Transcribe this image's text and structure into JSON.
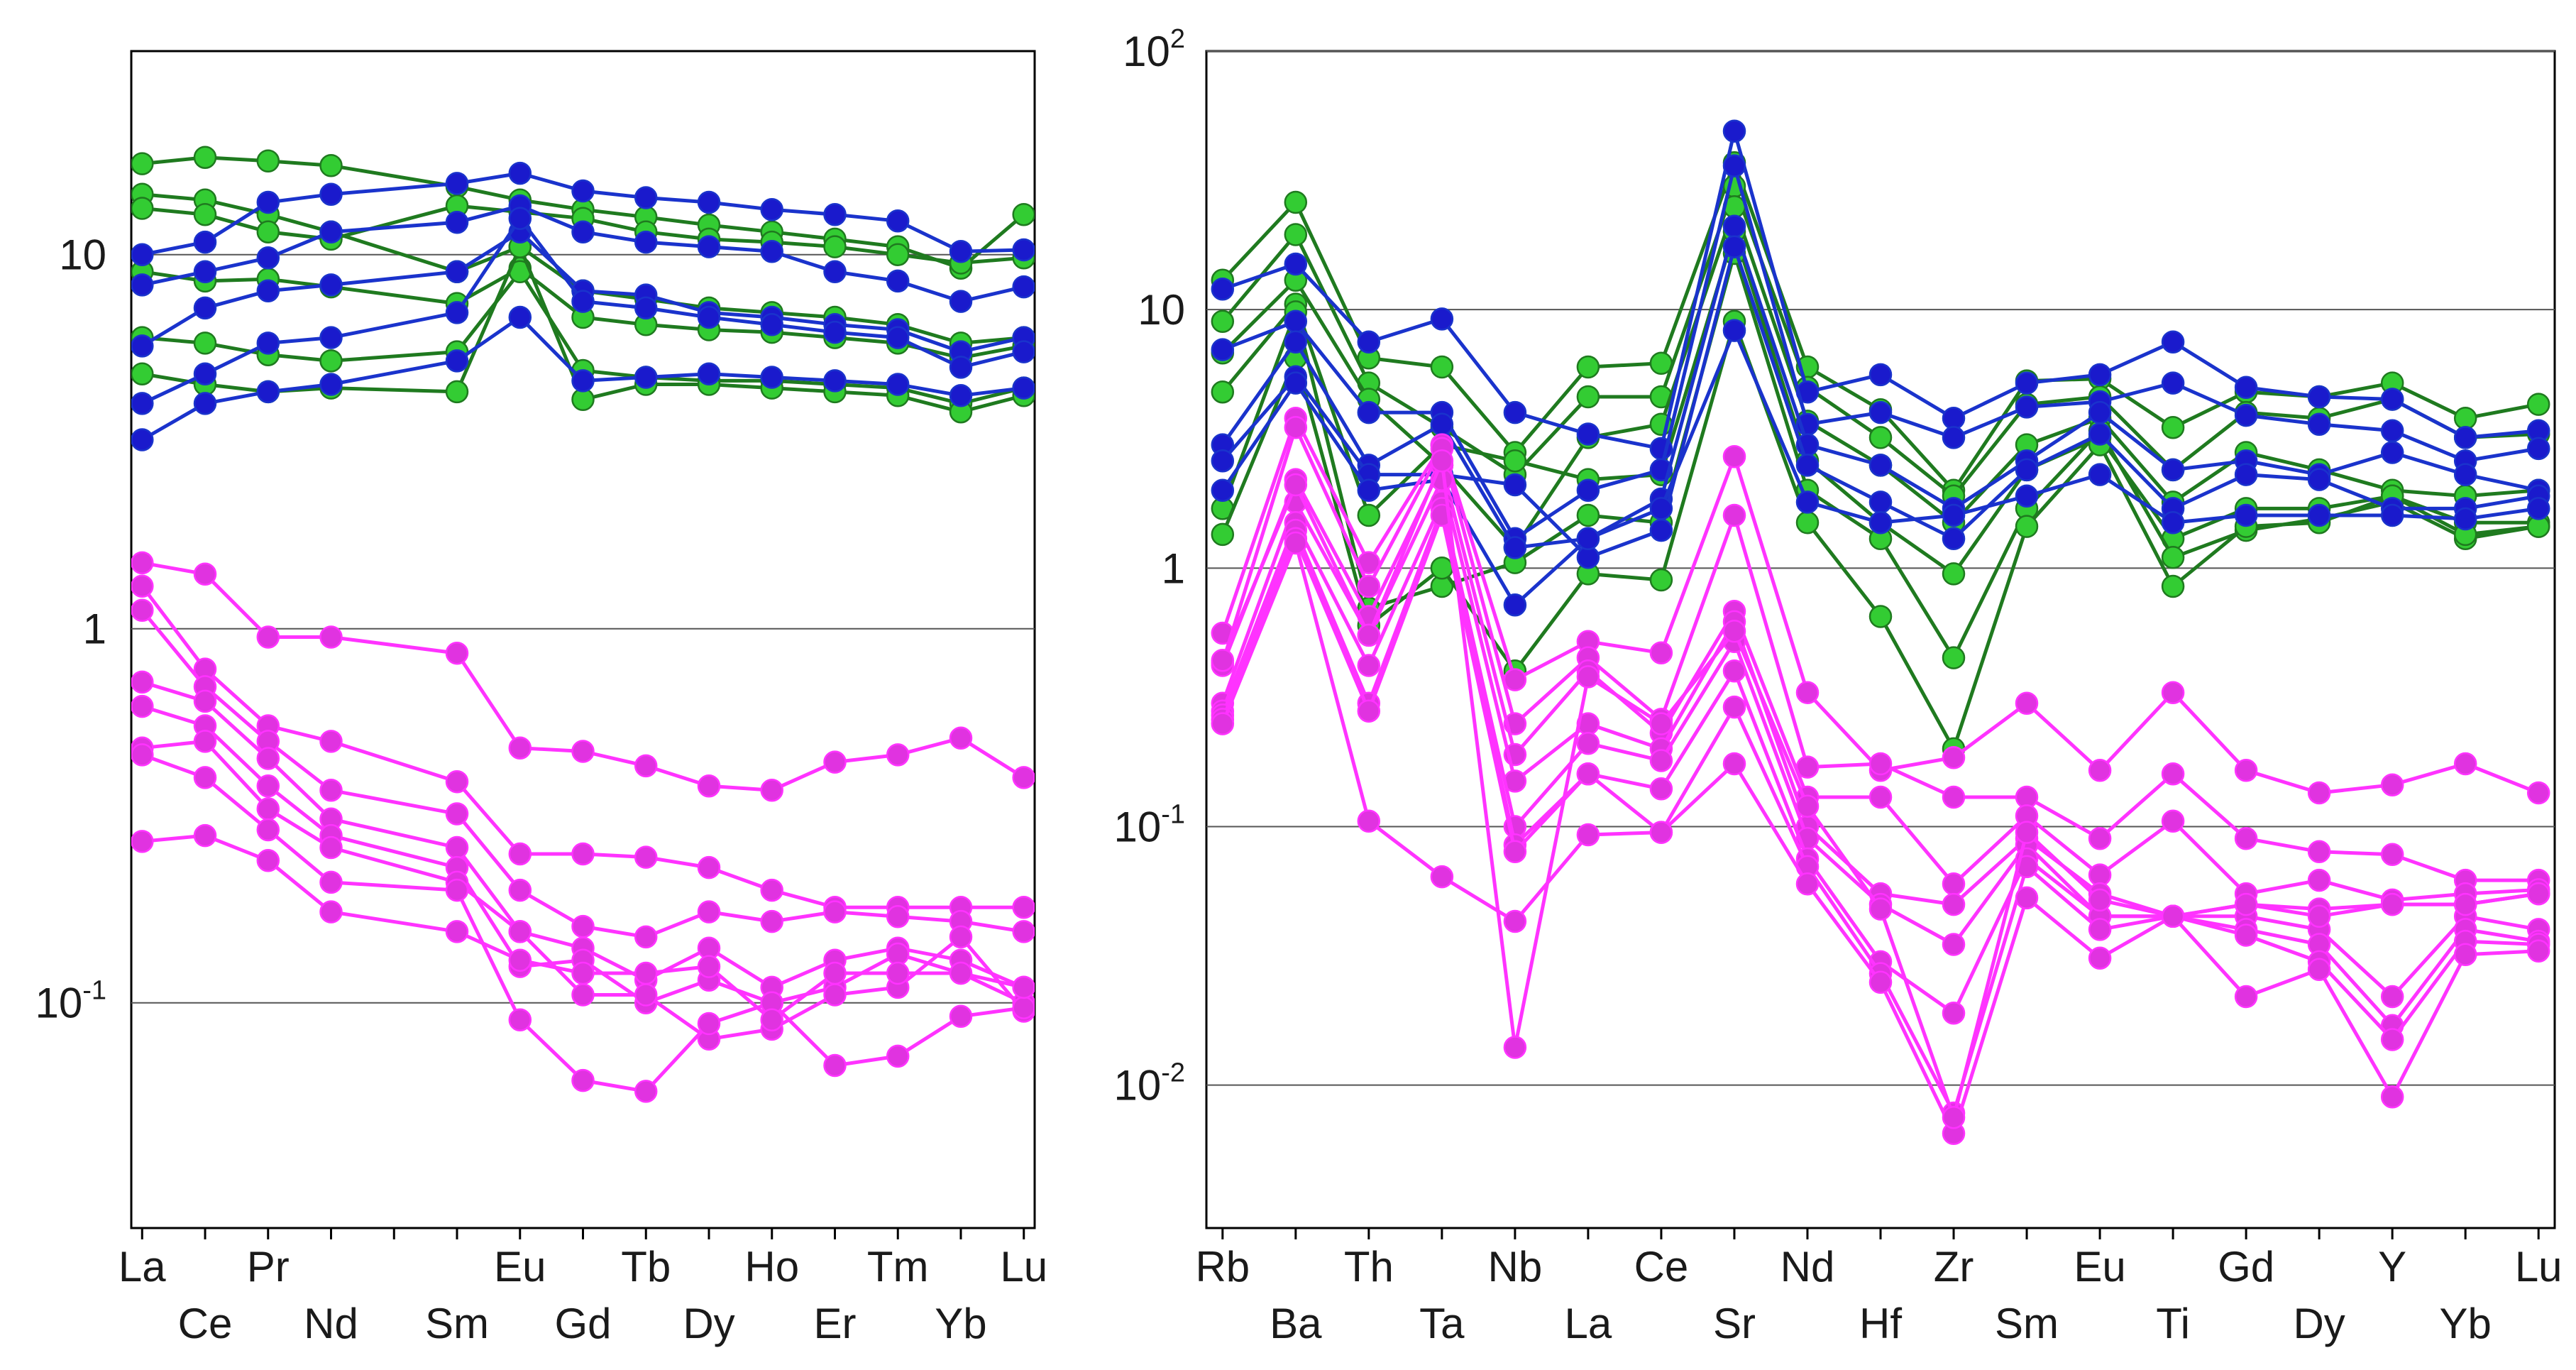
{
  "chart_data": [
    {
      "type": "line",
      "title": "",
      "xlabel": "",
      "ylabel": "",
      "yscale": "log",
      "ylim": [
        0.025,
        35
      ],
      "grid": "horizontal",
      "categories": [
        "La",
        "Ce",
        "Pr",
        "Nd",
        "",
        "Sm",
        "Eu",
        "Gd",
        "Tb",
        "Dy",
        "Ho",
        "Er",
        "Tm",
        "Yb",
        "Lu"
      ],
      "tick_labels_row1": [
        "La",
        "Pr",
        "Eu",
        "Tb",
        "Ho",
        "Tm",
        "Lu"
      ],
      "tick_labels_row2": [
        "Ce",
        "Nd",
        "Sm",
        "Gd",
        "Dy",
        "Er",
        "Yb"
      ],
      "y_ticks": [
        {
          "value": 0.1,
          "base": "10",
          "exp": "-1"
        },
        {
          "value": 1,
          "base": "1",
          "exp": ""
        },
        {
          "value": 10,
          "base": "10",
          "exp": ""
        }
      ],
      "groups": [
        {
          "name": "green",
          "line_color": "#1f7a1f",
          "marker_color": "#33cc33"
        },
        {
          "name": "blue",
          "line_color": "#1a33cc",
          "marker_color": "#1a1acc"
        },
        {
          "name": "magenta",
          "line_color": "#ff33ff",
          "marker_color": "#e033e0"
        }
      ],
      "series": [
        {
          "group": "green",
          "values": [
            17.5,
            18.2,
            17.8,
            17.3,
            null,
            15.2,
            14.0,
            13.2,
            12.6,
            12.0,
            11.5,
            11.0,
            10.5,
            9.2,
            12.8
          ]
        },
        {
          "group": "green",
          "values": [
            14.5,
            14.0,
            12.8,
            11.5,
            null,
            9.0,
            10.5,
            8.0,
            7.6,
            7.2,
            7.0,
            6.8,
            6.5,
            5.8,
            6.0
          ]
        },
        {
          "group": "green",
          "values": [
            13.3,
            12.8,
            11.5,
            11.0,
            null,
            13.5,
            13.0,
            12.5,
            11.5,
            11.0,
            10.8,
            10.5,
            10.0,
            9.5,
            9.8
          ]
        },
        {
          "group": "green",
          "values": [
            9.0,
            8.5,
            8.6,
            8.2,
            null,
            7.4,
            9.2,
            6.8,
            6.5,
            6.3,
            6.2,
            6.0,
            5.8,
            5.3,
            5.7
          ]
        },
        {
          "group": "green",
          "values": [
            6.0,
            5.8,
            5.4,
            5.2,
            null,
            5.5,
            9.0,
            4.9,
            4.7,
            4.6,
            4.6,
            4.5,
            4.4,
            4.0,
            4.4
          ]
        },
        {
          "group": "green",
          "values": [
            4.8,
            4.5,
            4.3,
            4.4,
            null,
            4.3,
            10.5,
            4.1,
            4.5,
            4.5,
            4.4,
            4.3,
            4.2,
            3.8,
            4.2
          ]
        },
        {
          "group": "blue",
          "values": [
            10.0,
            10.8,
            13.8,
            14.5,
            null,
            15.5,
            16.5,
            14.8,
            14.2,
            13.8,
            13.2,
            12.8,
            12.3,
            10.2,
            10.3
          ]
        },
        {
          "group": "blue",
          "values": [
            8.3,
            9.0,
            9.8,
            11.5,
            null,
            12.2,
            13.5,
            11.5,
            10.8,
            10.5,
            10.2,
            9.0,
            8.5,
            7.5,
            8.2
          ]
        },
        {
          "group": "blue",
          "values": [
            5.7,
            7.2,
            8.0,
            8.3,
            null,
            9.0,
            11.5,
            8.0,
            7.8,
            7.0,
            6.8,
            6.5,
            6.3,
            5.5,
            6.0
          ]
        },
        {
          "group": "blue",
          "values": [
            4.0,
            4.8,
            5.8,
            6.0,
            null,
            7.0,
            12.5,
            7.5,
            7.2,
            6.8,
            6.5,
            6.2,
            6.0,
            5.0,
            5.5
          ]
        },
        {
          "group": "blue",
          "values": [
            3.2,
            4.0,
            4.3,
            4.5,
            null,
            5.2,
            6.8,
            4.6,
            4.7,
            4.8,
            4.7,
            4.6,
            4.5,
            4.2,
            4.4
          ]
        },
        {
          "group": "magenta",
          "values": [
            1.5,
            1.4,
            0.95,
            0.95,
            null,
            0.86,
            0.48,
            0.47,
            0.43,
            0.38,
            0.37,
            0.44,
            0.46,
            0.51,
            0.4
          ]
        },
        {
          "group": "magenta",
          "values": [
            1.3,
            0.78,
            0.55,
            0.5,
            null,
            0.39,
            0.25,
            0.25,
            0.245,
            0.23,
            0.2,
            0.18,
            0.18,
            0.18,
            0.18
          ]
        },
        {
          "group": "magenta",
          "values": [
            1.12,
            0.7,
            0.5,
            0.37,
            null,
            0.32,
            0.2,
            0.16,
            0.15,
            0.175,
            0.165,
            0.175,
            0.17,
            0.165,
            0.155
          ]
        },
        {
          "group": "magenta",
          "values": [
            0.72,
            0.64,
            0.45,
            0.31,
            null,
            0.26,
            0.155,
            0.14,
            0.115,
            0.14,
            0.11,
            0.13,
            0.14,
            0.13,
            0.11
          ]
        },
        {
          "group": "magenta",
          "values": [
            0.62,
            0.55,
            0.38,
            0.28,
            null,
            0.23,
            0.125,
            0.13,
            0.1,
            0.115,
            0.1,
            0.11,
            0.135,
            0.12,
            0.1
          ]
        },
        {
          "group": "magenta",
          "values": [
            0.48,
            0.5,
            0.33,
            0.26,
            null,
            0.21,
            0.155,
            0.105,
            0.105,
            0.08,
            0.085,
            0.105,
            0.11,
            0.15,
            0.095
          ]
        },
        {
          "group": "magenta",
          "values": [
            0.46,
            0.4,
            0.29,
            0.21,
            null,
            0.2,
            0.09,
            0.062,
            0.058,
            0.088,
            0.1,
            0.068,
            0.072,
            0.092,
            0.097
          ]
        },
        {
          "group": "magenta",
          "values": [
            0.27,
            0.28,
            0.24,
            0.175,
            null,
            0.155,
            0.13,
            0.12,
            0.12,
            0.125,
            0.09,
            0.12,
            0.12,
            0.12,
            0.11
          ]
        }
      ]
    },
    {
      "type": "line",
      "title": "",
      "xlabel": "",
      "ylabel": "",
      "yscale": "log",
      "ylim": [
        0.0028,
        100
      ],
      "grid": "horizontal",
      "categories": [
        "Rb",
        "Ba",
        "Th",
        "Ta",
        "Nb",
        "La",
        "Ce",
        "Sr",
        "Nd",
        "Hf",
        "Zr",
        "Sm",
        "Eu",
        "Ti",
        "Gd",
        "Dy",
        "Y",
        "Yb",
        "Lu"
      ],
      "tick_labels_row1": [
        "Rb",
        "Th",
        "Nb",
        "Ce",
        "Nd",
        "Zr",
        "Eu",
        "Gd",
        "Y",
        "Lu"
      ],
      "tick_labels_row2": [
        "Ba",
        "Ta",
        "La",
        "Sr",
        "Hf",
        "Sm",
        "Ti",
        "Dy",
        "Yb"
      ],
      "y_ticks": [
        {
          "value": 0.01,
          "base": "10",
          "exp": "-2"
        },
        {
          "value": 0.1,
          "base": "10",
          "exp": "-1"
        },
        {
          "value": 1,
          "base": "1",
          "exp": ""
        },
        {
          "value": 10,
          "base": "10",
          "exp": ""
        },
        {
          "value": 100,
          "base": "10",
          "exp": "2"
        }
      ],
      "groups": [
        {
          "name": "green",
          "line_color": "#1f7a1f",
          "marker_color": "#33cc33"
        },
        {
          "name": "blue",
          "line_color": "#1a33cc",
          "marker_color": "#1a1acc"
        },
        {
          "name": "magenta",
          "line_color": "#ff33ff",
          "marker_color": "#e033e0"
        }
      ],
      "series": [
        {
          "group": "green",
          "values": [
            13.0,
            26.0,
            6.5,
            6.0,
            2.8,
            6.0,
            6.2,
            37.0,
            6.0,
            4.1,
            2.0,
            5.3,
            5.4,
            3.5,
            4.8,
            4.6,
            5.2,
            3.8,
            4.3
          ]
        },
        {
          "group": "green",
          "values": [
            9.0,
            19.5,
            5.2,
            3.5,
            2.3,
            4.6,
            4.6,
            30.0,
            5.0,
            3.2,
            1.9,
            4.3,
            4.6,
            2.4,
            4.0,
            3.8,
            4.5,
            3.2,
            3.3
          ]
        },
        {
          "group": "green",
          "values": [
            6.8,
            13.0,
            4.5,
            2.5,
            1.2,
            3.2,
            3.6,
            25.0,
            3.7,
            2.5,
            1.5,
            3.0,
            3.8,
            1.8,
            2.8,
            2.4,
            2.0,
            1.9,
            2.0
          ]
        },
        {
          "group": "green",
          "values": [
            4.8,
            10.5,
            1.6,
            3.0,
            2.6,
            2.2,
            2.3,
            20.0,
            2.6,
            1.5,
            0.95,
            2.4,
            3.2,
            1.3,
            1.7,
            1.7,
            1.9,
            1.5,
            1.5
          ]
        },
        {
          "group": "green",
          "values": [
            1.7,
            9.8,
            0.7,
            0.85,
            1.05,
            1.6,
            1.5,
            16.5,
            2.0,
            1.3,
            0.45,
            1.7,
            3.4,
            1.1,
            1.4,
            1.55,
            1.8,
            1.3,
            1.45
          ]
        },
        {
          "group": "green",
          "values": [
            1.35,
            6.5,
            0.6,
            1.0,
            0.4,
            0.95,
            0.9,
            9.0,
            1.5,
            0.65,
            0.2,
            1.45,
            3.0,
            0.85,
            1.45,
            1.5,
            1.9,
            1.35,
            1.45
          ]
        },
        {
          "group": "blue",
          "values": [
            12.0,
            15.0,
            7.5,
            9.2,
            4.0,
            3.3,
            2.9,
            49.0,
            4.8,
            5.6,
            3.8,
            5.2,
            5.6,
            7.5,
            5.0,
            4.6,
            4.5,
            3.2,
            3.4
          ]
        },
        {
          "group": "blue",
          "values": [
            7.0,
            9.0,
            4.0,
            4.0,
            1.3,
            2.0,
            2.4,
            36.0,
            3.6,
            4.0,
            3.2,
            4.2,
            4.4,
            5.2,
            3.9,
            3.6,
            3.4,
            2.6,
            2.9
          ]
        },
        {
          "group": "blue",
          "values": [
            3.0,
            7.5,
            2.5,
            3.6,
            1.2,
            1.3,
            1.85,
            21.0,
            3.0,
            2.5,
            1.7,
            2.6,
            4.0,
            2.4,
            2.6,
            2.3,
            2.8,
            2.3,
            2.0
          ]
        },
        {
          "group": "blue",
          "values": [
            2.6,
            5.5,
            2.3,
            2.3,
            2.1,
            1.1,
            1.4,
            17.5,
            2.5,
            1.8,
            1.3,
            2.4,
            3.3,
            1.7,
            2.3,
            2.2,
            1.7,
            1.7,
            1.9
          ]
        },
        {
          "group": "blue",
          "values": [
            2.0,
            5.2,
            2.0,
            2.2,
            0.72,
            1.3,
            1.7,
            8.3,
            1.8,
            1.5,
            1.6,
            1.9,
            2.3,
            1.5,
            1.6,
            1.6,
            1.6,
            1.55,
            1.7
          ]
        },
        {
          "group": "magenta",
          "values": [
            0.56,
            3.8,
            1.05,
            3.0,
            0.37,
            0.52,
            0.47,
            2.7,
            0.33,
            0.165,
            0.185,
            0.3,
            0.165,
            0.33,
            0.165,
            0.135,
            0.145,
            0.175,
            0.135
          ]
        },
        {
          "group": "magenta",
          "values": [
            0.43,
            3.5,
            0.85,
            2.9,
            0.25,
            0.45,
            0.26,
            1.6,
            0.17,
            0.175,
            0.13,
            0.13,
            0.09,
            0.16,
            0.09,
            0.08,
            0.078,
            0.062,
            0.062
          ]
        },
        {
          "group": "magenta",
          "values": [
            0.42,
            2.2,
            0.65,
            2.5,
            0.19,
            0.4,
            0.23,
            0.68,
            0.13,
            0.13,
            0.06,
            0.11,
            0.065,
            0.105,
            0.055,
            0.062,
            0.052,
            0.055,
            0.057
          ]
        },
        {
          "group": "magenta",
          "values": [
            0.3,
            1.8,
            0.55,
            2.2,
            0.15,
            0.25,
            0.2,
            0.62,
            0.1,
            0.055,
            0.05,
            0.09,
            0.055,
            0.045,
            0.05,
            0.048,
            0.05,
            0.05,
            0.055
          ]
        },
        {
          "group": "magenta",
          "values": [
            0.28,
            1.5,
            0.42,
            1.8,
            0.1,
            0.21,
            0.18,
            0.52,
            0.09,
            0.05,
            0.035,
            0.085,
            0.045,
            0.045,
            0.045,
            0.04,
            0.022,
            0.045,
            0.04
          ]
        },
        {
          "group": "magenta",
          "values": [
            0.27,
            1.4,
            0.3,
            1.7,
            0.085,
            0.16,
            0.14,
            0.4,
            0.075,
            0.03,
            0.019,
            0.075,
            0.045,
            0.045,
            0.04,
            0.035,
            0.017,
            0.04,
            0.036
          ]
        },
        {
          "group": "magenta",
          "values": [
            0.26,
            1.3,
            0.28,
            1.6,
            0.08,
            0.16,
            0.095,
            0.29,
            0.07,
            0.027,
            0.0078,
            0.07,
            0.04,
            0.045,
            0.038,
            0.03,
            0.015,
            0.036,
            0.035
          ]
        },
        {
          "group": "magenta",
          "values": [
            0.25,
            1.25,
            0.105,
            0.064,
            0.043,
            0.093,
            0.095,
            0.175,
            0.06,
            0.025,
            0.0065,
            0.053,
            0.031,
            0.045,
            0.022,
            0.028,
            0.009,
            0.032,
            0.033
          ]
        },
        {
          "group": "magenta",
          "values": [
            0.44,
            2.1,
            0.55,
            2.6,
            0.014,
            0.38,
            0.25,
            0.57,
            0.12,
            0.048,
            0.0075,
            0.095,
            0.052,
            0.045,
            0.05,
            0.045,
            0.05,
            0.05,
            0.055
          ]
        }
      ]
    }
  ]
}
